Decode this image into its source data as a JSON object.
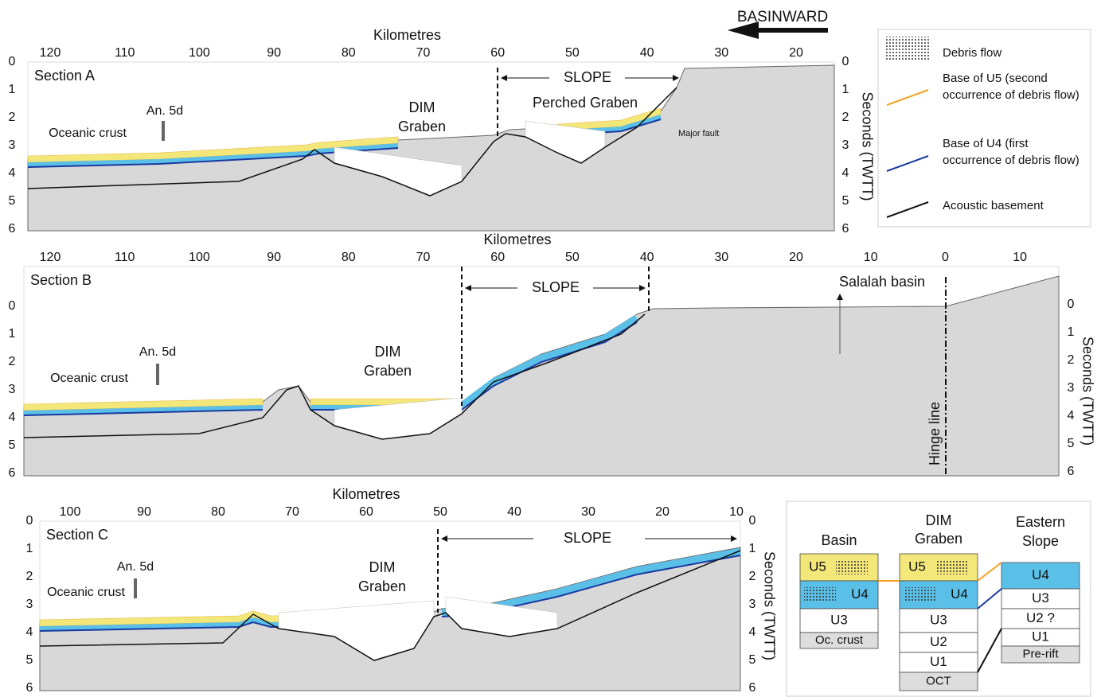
{
  "header": {
    "direction": "BASINWARD"
  },
  "legend": [
    "Debris flow",
    "Base of U5 (second occurrence of debris flow)",
    "Base of U4 (first occurrence of debris flow)",
    "Acoustic basement"
  ],
  "sections": [
    {
      "title": "Section A",
      "axis_title": "Kilometres",
      "km_ticks": [
        120,
        110,
        100,
        90,
        80,
        70,
        60,
        50,
        40,
        30,
        20
      ],
      "twt_ticks_left": [
        0,
        1,
        2,
        3,
        4,
        5,
        6
      ],
      "twt_ticks_right": [
        0,
        1,
        2,
        3,
        4,
        5,
        6
      ],
      "twt_label": "Seconds (TWTT)",
      "slope": "SLOPE",
      "graben": [
        "DIM",
        "Graben"
      ],
      "perched": "Perched Graben",
      "anomaly": "An. 5d",
      "crust": "Oceanic crust",
      "fault": "Major fault"
    },
    {
      "title": "Section B",
      "axis_title": "Kilometres",
      "km_ticks": [
        120,
        110,
        100,
        90,
        80,
        70,
        60,
        50,
        40,
        30,
        20,
        10,
        0,
        10
      ],
      "twt_ticks_left": [
        0,
        1,
        2,
        3,
        4,
        5,
        6
      ],
      "twt_ticks_right": [
        0,
        1,
        2,
        3,
        4,
        5,
        6
      ],
      "twt_label": "Seconds (TWTT)",
      "slope": "SLOPE",
      "graben": [
        "DIM",
        "Graben"
      ],
      "basin": "Salalah basin",
      "anomaly": "An. 5d",
      "crust": "Oceanic crust",
      "hinge": "Hinge line"
    },
    {
      "title": "Section C",
      "axis_title": "Kilometres",
      "km_ticks": [
        100,
        90,
        80,
        70,
        60,
        50,
        40,
        30,
        20,
        10
      ],
      "twt_ticks_left": [
        0,
        1,
        2,
        3,
        4,
        5,
        6
      ],
      "twt_ticks_right": [
        0,
        1,
        2,
        3,
        4,
        5,
        6
      ],
      "twt_label": "Seconds (TWTT)",
      "slope": "SLOPE",
      "graben": [
        "DIM",
        "Graben"
      ],
      "anomaly": "An. 5d",
      "crust": "Oceanic crust"
    }
  ],
  "stratigraphy": {
    "columns": [
      {
        "name": [
          "Basin"
        ],
        "units": [
          "U5",
          "U4",
          "U3",
          "Oc. crust"
        ]
      },
      {
        "name": [
          "DIM",
          "Graben"
        ],
        "units": [
          "U5",
          "U4",
          "U3",
          "U2",
          "U1",
          "OCT"
        ]
      },
      {
        "name": [
          "Eastern",
          "Slope"
        ],
        "units": [
          "U4",
          "U3",
          "U2 ?",
          "U1",
          "Pre-rift"
        ]
      }
    ]
  }
}
